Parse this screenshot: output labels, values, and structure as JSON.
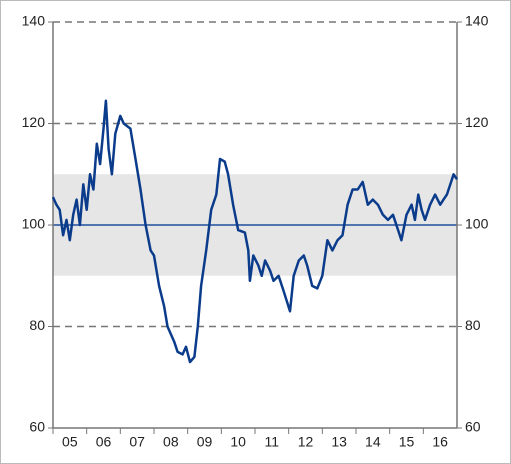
{
  "chart_data": {
    "type": "line",
    "x": [
      5.0,
      5.1,
      5.2,
      5.3,
      5.4,
      5.5,
      5.6,
      5.7,
      5.8,
      5.9,
      6.0,
      6.1,
      6.2,
      6.3,
      6.4,
      6.5,
      6.57,
      6.65,
      6.75,
      6.85,
      7.0,
      7.1,
      7.3,
      7.45,
      7.6,
      7.75,
      7.9,
      8.0,
      8.15,
      8.3,
      8.4,
      8.6,
      8.7,
      8.85,
      8.95,
      9.07,
      9.2,
      9.3,
      9.4,
      9.55,
      9.7,
      9.85,
      9.96,
      10.1,
      10.2,
      10.35,
      10.5,
      10.7,
      10.8,
      10.85,
      10.95,
      11.1,
      11.2,
      11.3,
      11.45,
      11.55,
      11.7,
      11.85,
      12.04,
      12.15,
      12.3,
      12.45,
      12.55,
      12.7,
      12.85,
      13.0,
      13.15,
      13.3,
      13.45,
      13.6,
      13.75,
      13.9,
      14.05,
      14.2,
      14.35,
      14.5,
      14.65,
      14.8,
      14.95,
      15.1,
      15.25,
      15.35,
      15.5,
      15.65,
      15.75,
      15.85,
      15.95,
      16.05,
      16.2,
      16.35,
      16.5,
      16.6,
      16.7,
      16.8,
      16.9,
      17.0
    ],
    "series": [
      {
        "color": "#0b3c8c",
        "values": [
          105.5,
          104,
          103,
          98,
          101,
          97,
          102,
          105,
          100,
          108,
          103,
          110,
          107,
          116,
          112,
          119,
          124.5,
          115,
          110,
          118,
          121.5,
          120,
          119,
          113,
          107,
          100,
          95,
          94,
          88,
          84,
          80,
          77,
          75,
          74.5,
          76,
          73,
          74,
          80,
          88,
          95,
          103,
          106,
          113,
          112.5,
          110,
          104,
          99,
          98.5,
          95,
          89,
          94,
          92,
          90,
          93,
          91,
          89,
          90,
          87,
          83,
          90,
          93,
          94,
          92,
          88,
          87.5,
          90,
          97,
          95,
          97,
          98,
          104,
          107,
          107,
          108.5,
          104,
          105,
          104,
          102,
          101,
          102,
          99,
          97,
          102,
          104,
          101,
          106,
          103,
          101,
          104,
          106,
          104,
          105,
          106,
          108,
          110,
          109
        ]
      }
    ],
    "xlim": [
      5,
      17
    ],
    "xticks": [
      {
        "value": 5,
        "label": "05"
      },
      {
        "value": 6,
        "label": "06"
      },
      {
        "value": 7,
        "label": "07"
      },
      {
        "value": 8,
        "label": "08"
      },
      {
        "value": 9,
        "label": "09"
      },
      {
        "value": 10,
        "label": "10"
      },
      {
        "value": 11,
        "label": "11"
      },
      {
        "value": 12,
        "label": "12"
      },
      {
        "value": 13,
        "label": "13"
      },
      {
        "value": 14,
        "label": "14"
      },
      {
        "value": 15,
        "label": "15"
      },
      {
        "value": 16,
        "label": "16"
      }
    ],
    "ylim": [
      60,
      140
    ],
    "yticks": [
      60,
      80,
      100,
      120,
      140
    ],
    "y2lim": [
      60,
      140
    ],
    "y2ticks": [
      60,
      80,
      100,
      120,
      140
    ],
    "band": [
      90,
      110
    ],
    "band_color": "#e6e6e6",
    "reference_line": 100,
    "reference_color": "#1f4e9c",
    "grid": true
  }
}
